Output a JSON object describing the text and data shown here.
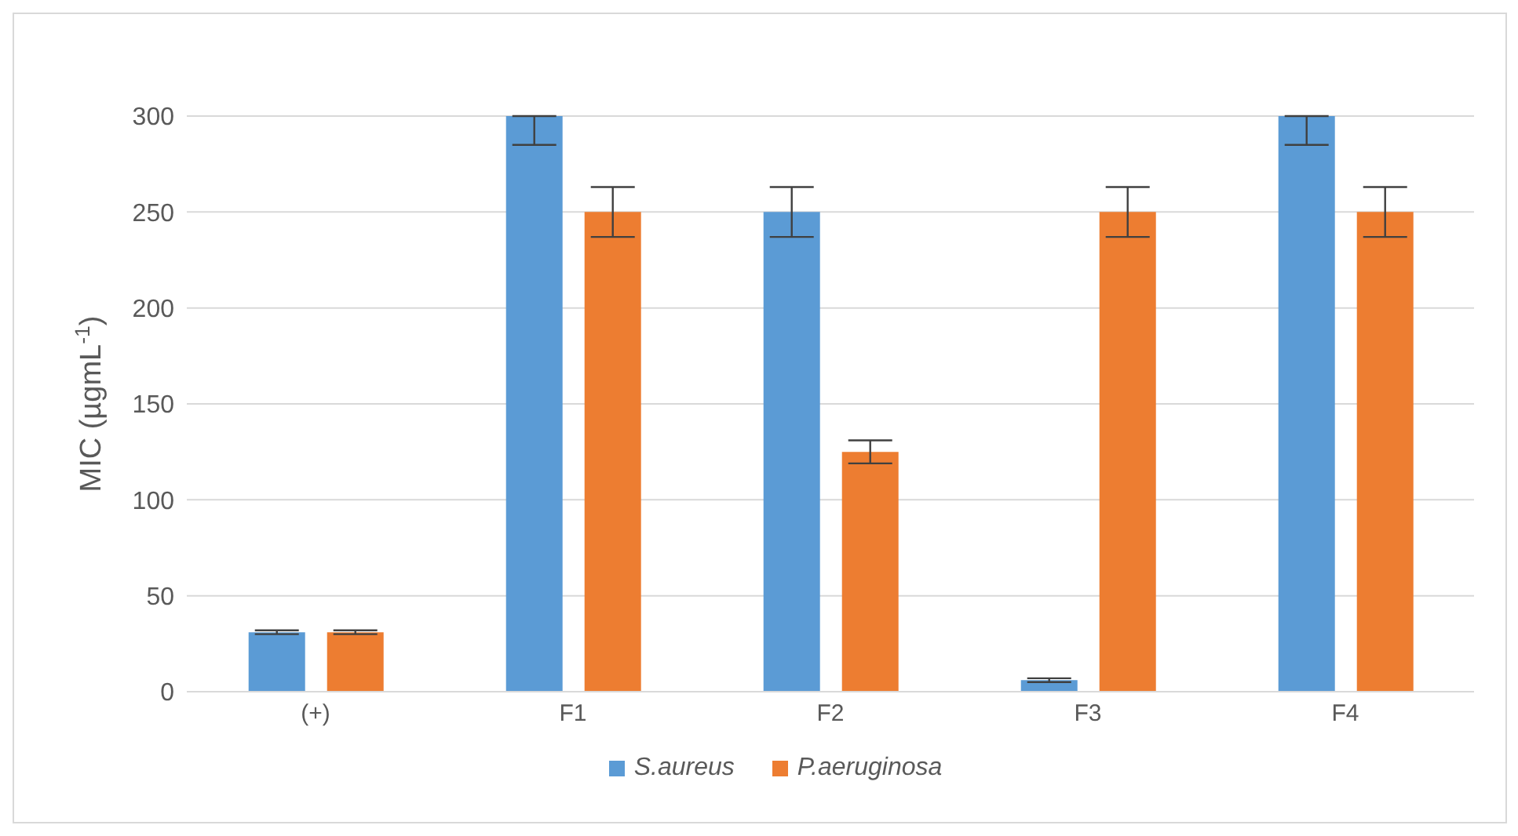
{
  "chart_data": {
    "type": "bar",
    "ylabel": "MIC (µgmL$^{-1}$)",
    "categories": [
      "(+)",
      "F1",
      "F2",
      "F3",
      "F4"
    ],
    "series": [
      {
        "name": "S.aureus",
        "color": "#5b9bd5",
        "values": [
          31,
          300,
          250,
          6,
          300
        ],
        "errors": [
          1,
          [
            285,
            300
          ],
          13,
          1,
          [
            285,
            300
          ]
        ]
      },
      {
        "name": "P.aeruginosa",
        "color": "#ed7d31",
        "values": [
          31,
          250,
          125,
          250,
          250
        ],
        "errors": [
          1,
          13,
          6,
          13,
          13
        ]
      }
    ],
    "ylim": [
      0,
      300
    ],
    "yticks": [
      0,
      50,
      100,
      150,
      200,
      250,
      300
    ],
    "grid": "y",
    "legend": "bottom"
  }
}
